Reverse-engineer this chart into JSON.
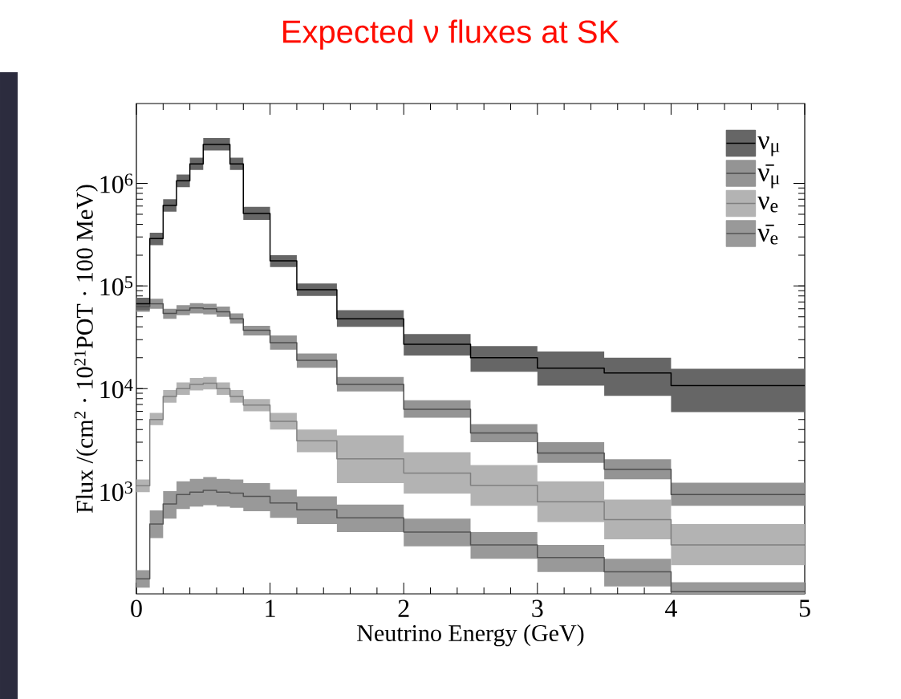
{
  "chart_data": {
    "type": "step",
    "title": "Expected ν fluxes at SK",
    "xlabel": "Neutrino Energy (GeV)",
    "ylabel": "Flux /(cm$^{2}$ · 10$^{21}$POT · 100 MeV)",
    "x": [
      0,
      0.1,
      0.2,
      0.3,
      0.4,
      0.5,
      0.6,
      0.7,
      0.8,
      1.0,
      1.2,
      1.5,
      2.0,
      2.5,
      3.0,
      3.5,
      4.0,
      5.0
    ],
    "series": [
      {
        "name": "ν$_{μ}$",
        "color": "#000000",
        "values": [
          67000,
          290000,
          610000,
          1060000,
          1550000,
          2400000,
          2400000,
          1550000,
          510000,
          176000,
          92000,
          48000,
          27000,
          20000,
          15800,
          14200,
          10700,
          10700
        ],
        "upper": [
          77000,
          330000,
          700000,
          1220000,
          1780000,
          2760000,
          2760000,
          1780000,
          590000,
          200000,
          106000,
          58000,
          34000,
          26000,
          23000,
          20000,
          15600,
          15600
        ],
        "lower": [
          58000,
          250000,
          530000,
          920000,
          1350000,
          2090000,
          2090000,
          1350000,
          440000,
          153000,
          80000,
          40000,
          21000,
          14600,
          10700,
          8500,
          5900,
          5900
        ]
      },
      {
        "name": "ν̄$_{μ}$",
        "color": "#4d4d4d",
        "values": [
          63000,
          67000,
          54000,
          58000,
          61000,
          60000,
          56000,
          48000,
          37000,
          28000,
          18900,
          11000,
          6300,
          3700,
          2360,
          1640,
          930,
          930
        ],
        "upper": [
          71000,
          75000,
          60000,
          65000,
          68000,
          67000,
          63000,
          54000,
          41000,
          33000,
          22000,
          13000,
          7700,
          4500,
          3000,
          2050,
          1210,
          1210
        ],
        "lower": [
          56000,
          60000,
          48000,
          52000,
          54000,
          53000,
          50000,
          43000,
          33000,
          24000,
          16000,
          9400,
          5200,
          3000,
          1890,
          1310,
          720,
          720
        ]
      },
      {
        "name": "ν$_{e}$",
        "color": "#808080",
        "values": [
          1130,
          5000,
          8400,
          10000,
          11000,
          11300,
          10000,
          8400,
          6900,
          4800,
          3100,
          2070,
          1500,
          1140,
          790,
          530,
          300,
          300
        ],
        "upper": [
          1300,
          5800,
          9700,
          11500,
          12700,
          13000,
          11500,
          9700,
          7900,
          5800,
          4000,
          3500,
          2400,
          1800,
          1250,
          830,
          480,
          480
        ],
        "lower": [
          980,
          4400,
          7300,
          8700,
          9600,
          9800,
          8700,
          7300,
          6000,
          4000,
          2400,
          1200,
          950,
          720,
          500,
          340,
          190,
          190
        ]
      },
      {
        "name": "ν̄$_{e}$",
        "color": "#555555",
        "values": [
          140,
          480,
          750,
          930,
          980,
          1020,
          980,
          960,
          890,
          770,
          660,
          550,
          400,
          300,
          226,
          164,
          105,
          105
        ],
        "upper": [
          170,
          650,
          1000,
          1250,
          1320,
          1380,
          1320,
          1300,
          1200,
          1040,
          890,
          740,
          540,
          400,
          300,
          220,
          130,
          130
        ],
        "lower": [
          115,
          350,
          540,
          670,
          710,
          730,
          710,
          690,
          640,
          550,
          480,
          400,
          290,
          220,
          163,
          118,
          100,
          100
        ]
      }
    ],
    "xlim": [
      0,
      5
    ],
    "xticks": [
      0,
      1,
      2,
      3,
      4,
      5
    ],
    "ylim": [
      100,
      6000000
    ],
    "yticks": [
      {
        "value": 1000,
        "label": "10$^{3}$"
      },
      {
        "value": 10000,
        "label": "10$^{4}$"
      },
      {
        "value": 100000,
        "label": "10$^{5}$"
      },
      {
        "value": 1000000,
        "label": "10$^{6}$"
      }
    ],
    "log": "y",
    "grid": false,
    "legend": "top right",
    "marker": "none",
    "line_style": "solid"
  }
}
